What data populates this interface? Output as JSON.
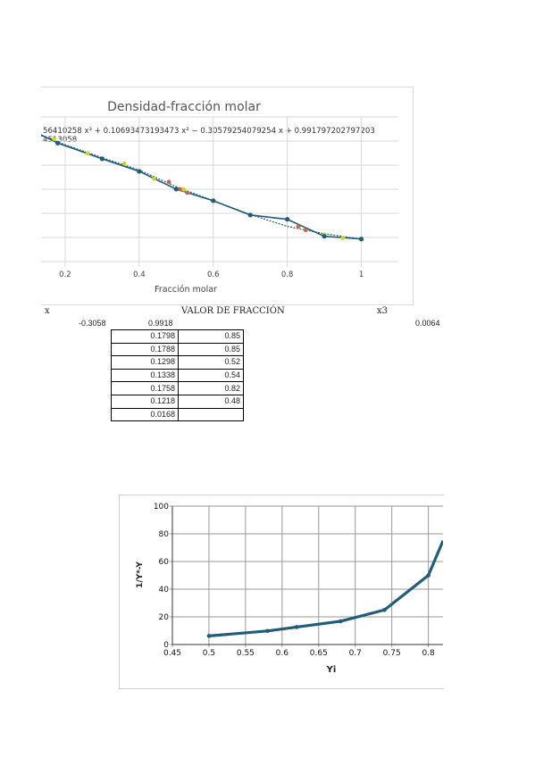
{
  "chart_data": [
    {
      "type": "line",
      "title": "Densidad-fracción molar",
      "equation": "56410258 x³ + 0.10693473193473 x² − 0.30579254079254 x + 0.991797202797203",
      "equation_line2": "4513058",
      "xlabel": "Fracción molar",
      "ylabel": "",
      "xlim": [
        0.135,
        1.1
      ],
      "ylim": [
        0.952,
        0.992
      ],
      "x_ticks": [
        "0.2",
        "0.4",
        "0.6",
        "0.8",
        "1"
      ],
      "grid": true,
      "series": [
        {
          "x": [
            0.135,
            0.18,
            0.3,
            0.4,
            0.5,
            0.6,
            0.7,
            0.8,
            0.9,
            1.0
          ],
          "y": [
            0.98852,
            0.98625,
            0.98191,
            0.97843,
            0.97352,
            0.97031,
            0.96636,
            0.96517,
            0.96047,
            0.95972
          ]
        }
      ],
      "markers_yellow": {
        "x": [
          0.17,
          0.26,
          0.36,
          0.44,
          0.52,
          0.9,
          0.95
        ],
        "y": [
          0.9874,
          0.9834,
          0.9806,
          0.9764,
          0.9734,
          0.9609,
          0.96
        ]
      },
      "markers_red": {
        "x": [
          0.48,
          0.51,
          0.53,
          0.83,
          0.85
        ],
        "y": [
          0.9755,
          0.9735,
          0.9725,
          0.9632,
          0.9622
        ]
      },
      "trendline": {
        "x": [
          0.135,
          0.2,
          0.3,
          0.4,
          0.5,
          0.6,
          0.7,
          0.8,
          0.9,
          1.0
        ],
        "y": [
          0.9883,
          0.9858,
          0.9822,
          0.9788,
          0.9742,
          0.9703,
          0.9665,
          0.9632,
          0.9612,
          0.9597
        ]
      },
      "colors": {
        "line": "#1f5d7a",
        "yellow": "#d6d21a",
        "red": "#c8654a",
        "grid": "#d8d8d8",
        "title": "#555555"
      }
    },
    {
      "type": "line",
      "title": "",
      "xlabel": "Yi",
      "ylabel": "1/Y*-Y",
      "xlim": [
        0.45,
        0.82
      ],
      "ylim": [
        0,
        100
      ],
      "x_ticks": [
        "0.45",
        "0.5",
        "0.55",
        "0.6",
        "0.65",
        "0.7",
        "0.75",
        "0.8"
      ],
      "y_ticks": [
        "0",
        "20",
        "40",
        "60",
        "80",
        "100"
      ],
      "grid": true,
      "series": [
        {
          "x": [
            0.5,
            0.58,
            0.62,
            0.68,
            0.74,
            0.8,
            0.82
          ],
          "y": [
            6.2,
            9.8,
            12.6,
            16.8,
            25,
            50,
            75
          ]
        }
      ],
      "colors": {
        "line": "#1f5d7a",
        "grid": "#999999"
      }
    }
  ],
  "sheet": {
    "header_x": "x",
    "header_title": "VALOR DE FRACCIÓN",
    "header_x3": "x3",
    "coef_a": "-0.3058",
    "coef_b": "0.9918",
    "coef_c": "0.0064",
    "rows": [
      {
        "a": "0.1798",
        "b": "0.85"
      },
      {
        "a": "0.1788",
        "b": "0.85"
      },
      {
        "a": "0.1298",
        "b": "0.52"
      },
      {
        "a": "0.1338",
        "b": "0.54"
      },
      {
        "a": "0.1758",
        "b": "0.82"
      },
      {
        "a": "0.1218",
        "b": "0.48"
      },
      {
        "a": "0.0168",
        "b": ""
      }
    ]
  }
}
